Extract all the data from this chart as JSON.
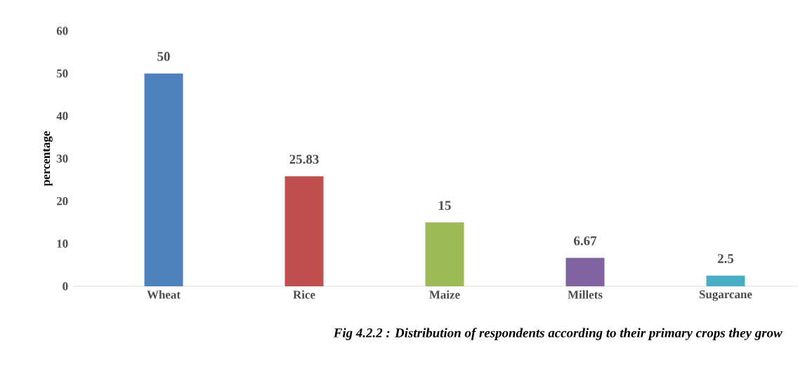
{
  "chart_data": {
    "type": "bar",
    "ylabel": "percentage",
    "categories": [
      "Wheat",
      "Rice",
      "Maize",
      "Millets",
      "Sugarcane"
    ],
    "values": [
      50,
      25.83,
      15,
      6.67,
      2.5
    ],
    "colors": [
      "#4f81bd",
      "#c0504d",
      "#9bbb59",
      "#8064a2",
      "#4bacc6"
    ],
    "ylim": [
      0,
      60
    ],
    "yticks": [
      0,
      10,
      20,
      30,
      40,
      50,
      60
    ],
    "data_labels": true,
    "annotations": [
      "Fig 4.2.2 : Distribution of respondents according to their primary crops they grow"
    ]
  }
}
